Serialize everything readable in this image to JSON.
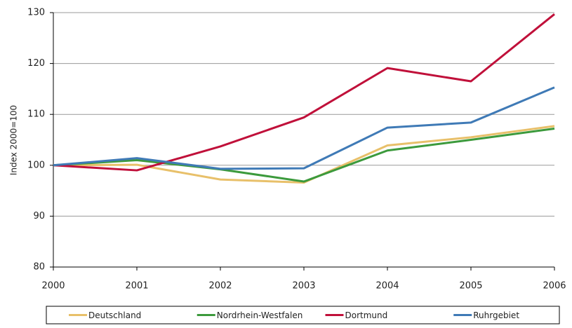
{
  "chart_data": {
    "type": "line",
    "y_label": "Index 2000=100",
    "x": [
      2000,
      2001,
      2002,
      2003,
      2004,
      2005,
      2006
    ],
    "series": [
      {
        "name": "Deutschland",
        "color": "#e8c06a",
        "values": [
          100,
          100.1,
          97.2,
          96.6,
          103.9,
          105.5,
          107.7
        ]
      },
      {
        "name": "Nordrhein-Westfalen",
        "color": "#3c9a3c",
        "values": [
          100,
          101.0,
          99.2,
          96.8,
          102.9,
          105.0,
          107.2
        ]
      },
      {
        "name": "Dortmund",
        "color": "#c0103a",
        "values": [
          100,
          99.0,
          103.7,
          109.4,
          119.1,
          116.5,
          129.7
        ]
      },
      {
        "name": "Ruhrgebiet",
        "color": "#3f7ab6",
        "values": [
          100,
          101.4,
          99.3,
          99.4,
          107.4,
          108.4,
          115.3
        ]
      }
    ],
    "xlim": [
      2000,
      2006
    ],
    "ylim": [
      80,
      130
    ],
    "xticks": [
      2000,
      2001,
      2002,
      2003,
      2004,
      2005,
      2006
    ],
    "yticks": [
      80,
      90,
      100,
      110,
      120,
      130
    ],
    "grid": true,
    "legend": "bottom"
  }
}
